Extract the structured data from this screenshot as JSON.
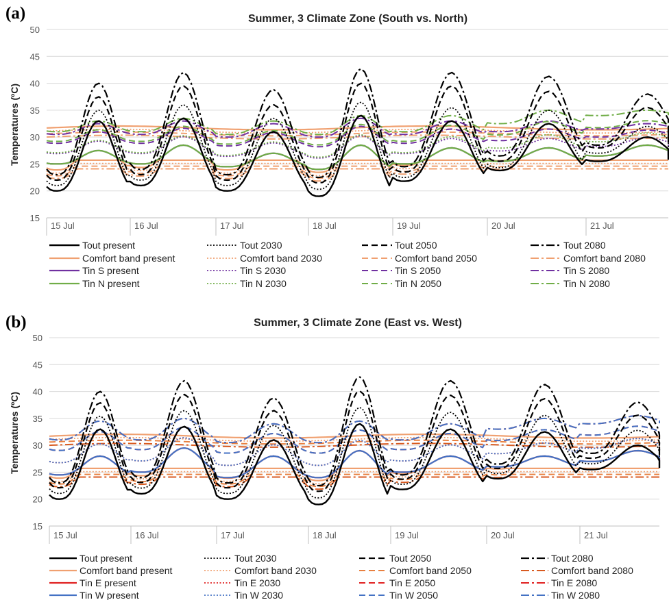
{
  "chart_data": [
    {
      "panel": "(a)",
      "type": "line",
      "title": "Summer, 3 Climate Zone (South vs. North)",
      "ylabel": "Temperatures (ºC)",
      "xlabel": "",
      "ylim": [
        15,
        50
      ],
      "yticks": [
        "15",
        "20",
        "25",
        "30",
        "35",
        "40",
        "45",
        "50"
      ],
      "days": [
        "15 Jul",
        "16 Jul",
        "17 Jul",
        "18 Jul",
        "19 Jul",
        "20 Jul",
        "21 Jul"
      ],
      "grid": "horizontal",
      "legend_position": "bottom",
      "series": [
        {
          "name": "Tout present",
          "color": "#000000",
          "dash": "solid",
          "width": 2.4
        },
        {
          "name": "Tout 2030",
          "color": "#000000",
          "dash": "dot",
          "width": 1.8
        },
        {
          "name": "Tout 2050",
          "color": "#000000",
          "dash": "dash",
          "width": 2.2
        },
        {
          "name": "Tout 2080",
          "color": "#000000",
          "dash": "dashdot",
          "width": 2.2
        },
        {
          "name": "Comfort band present",
          "color": "#F0A070",
          "dash": "solid",
          "width": 2.2
        },
        {
          "name": "Comfort band 2030",
          "color": "#F0A070",
          "dash": "dot",
          "width": 1.8
        },
        {
          "name": "Comfort band 2050",
          "color": "#F0A070",
          "dash": "dash",
          "width": 2
        },
        {
          "name": "Comfort band 2080",
          "color": "#F0A070",
          "dash": "dashdot",
          "width": 2
        },
        {
          "name": "Tin S present",
          "color": "#7030A0",
          "dash": "solid",
          "width": 2.2
        },
        {
          "name": "Tin S 2030",
          "color": "#7030A0",
          "dash": "dot",
          "width": 1.8
        },
        {
          "name": "Tin S 2050",
          "color": "#7030A0",
          "dash": "dash",
          "width": 2
        },
        {
          "name": "Tin S 2080",
          "color": "#7030A0",
          "dash": "dashdot",
          "width": 2
        },
        {
          "name": "Tin N present",
          "color": "#70AD47",
          "dash": "solid",
          "width": 2.2
        },
        {
          "name": "Tin N 2030",
          "color": "#70AD47",
          "dash": "dot",
          "width": 1.8
        },
        {
          "name": "Tin N 2050",
          "color": "#70AD47",
          "dash": "dash",
          "width": 2
        },
        {
          "name": "Tin N 2080",
          "color": "#70AD47",
          "dash": "dashdot",
          "width": 2
        }
      ],
      "legend_labels": [
        "Tout present",
        "Tout 2030",
        "Tout 2050",
        "Tout 2080",
        "Comfort band present",
        "Comfort band 2030",
        "Comfort band 2050",
        "Comfort band 2080",
        "Tin S present",
        "Tin S 2030",
        "Tin S 2050",
        "Tin S 2080",
        "Tin N present",
        "Tin N 2030",
        "Tin N 2050",
        "Tin N 2080"
      ],
      "daily_values": {
        "Tout present": {
          "min": [
            20.0,
            21.0,
            20.0,
            19.0,
            21.8,
            23.8,
            25.5
          ],
          "max": [
            33.0,
            33.5,
            31.0,
            34.0,
            33.0,
            32.5,
            30.0
          ]
        },
        "Tout 2030": {
          "min": [
            21.0,
            22.0,
            21.0,
            20.3,
            22.5,
            24.3,
            27.0
          ],
          "max": [
            35.0,
            36.0,
            33.5,
            36.5,
            35.5,
            35.0,
            32.0
          ]
        },
        "Tout 2050": {
          "min": [
            22.0,
            23.0,
            22.0,
            21.5,
            23.5,
            25.5,
            28.0
          ],
          "max": [
            37.5,
            39.5,
            36.0,
            40.0,
            39.5,
            38.5,
            35.5
          ]
        },
        "Tout 2080": {
          "min": [
            23.0,
            24.0,
            23.0,
            22.5,
            24.5,
            26.5,
            28.5
          ],
          "max": [
            40.0,
            42.0,
            38.8,
            42.7,
            42.0,
            41.3,
            38.0
          ]
        },
        "Comfort band present (upper / lower)": [
          31.7,
          25.7
        ],
        "Tin S present": {
          "min": [
            25.0,
            25.0,
            24.5,
            24.0,
            25.0,
            25.5,
            26.5
          ],
          "max": [
            27.5,
            28.5,
            27.0,
            28.5,
            28.0,
            28.0,
            28.5
          ]
        },
        "Tin S 2080": {
          "min": [
            30.5,
            30.5,
            30.0,
            30.0,
            30.5,
            31.0,
            31.5
          ],
          "max": [
            32.5,
            33.0,
            32.5,
            33.5,
            33.0,
            33.0,
            32.5
          ]
        },
        "Tin N 2080": {
          "min": [
            31.0,
            31.0,
            30.5,
            30.5,
            31.0,
            32.5,
            34.0
          ],
          "max": [
            33.0,
            33.5,
            33.0,
            34.0,
            34.0,
            35.0,
            35.0
          ]
        }
      }
    },
    {
      "panel": "(b)",
      "type": "line",
      "title": "Summer, 3 Climate Zone (East vs. West)",
      "ylabel": "Temperatures (ºC)",
      "xlabel": "",
      "ylim": [
        15,
        50
      ],
      "yticks": [
        "15",
        "20",
        "25",
        "30",
        "35",
        "40",
        "45",
        "50"
      ],
      "days": [
        "15 Jul",
        "16 Jul",
        "17 Jul",
        "18 Jul",
        "19 Jul",
        "20 Jul",
        "21 Jul"
      ],
      "grid": "horizontal",
      "legend_position": "bottom",
      "series": [
        {
          "name": "Tout present",
          "color": "#000000",
          "dash": "solid",
          "width": 2.4
        },
        {
          "name": "Tout 2030",
          "color": "#000000",
          "dash": "dot",
          "width": 1.8
        },
        {
          "name": "Tout 2050",
          "color": "#000000",
          "dash": "dash",
          "width": 2.2
        },
        {
          "name": "Tout 2080",
          "color": "#000000",
          "dash": "dashdot",
          "width": 2.2
        },
        {
          "name": "Comfort band present",
          "color": "#F0A070",
          "dash": "solid",
          "width": 2.2
        },
        {
          "name": "Comfort band 2030",
          "color": "#F0A070",
          "dash": "dot",
          "width": 1.8
        },
        {
          "name": "Comfort band 2050",
          "color": "#E88040",
          "dash": "dash",
          "width": 2
        },
        {
          "name": "Comfort band 2080",
          "color": "#D85A20",
          "dash": "dashdot",
          "width": 2
        },
        {
          "name": "Tin E present",
          "color": "#E02020",
          "dash": "solid",
          "width": 2.2
        },
        {
          "name": "Tin E 2030",
          "color": "#E02020",
          "dash": "dot",
          "width": 1.8
        },
        {
          "name": "Tin E 2050",
          "color": "#E02020",
          "dash": "dash",
          "width": 2
        },
        {
          "name": "Tin E 2080",
          "color": "#E02020",
          "dash": "dashdot",
          "width": 2
        },
        {
          "name": "Tin W present",
          "color": "#4472C4",
          "dash": "solid",
          "width": 2.2
        },
        {
          "name": "Tin W 2030",
          "color": "#4472C4",
          "dash": "dot",
          "width": 1.8
        },
        {
          "name": "Tin W 2050",
          "color": "#4472C4",
          "dash": "dash",
          "width": 2
        },
        {
          "name": "Tin W 2080",
          "color": "#4472C4",
          "dash": "dashdot",
          "width": 2
        }
      ],
      "legend_labels": [
        "Tout present",
        "Tout 2030",
        "Tout 2050",
        "Tout 2080",
        "Comfort band present",
        "Comfort band 2030",
        "Comfort band 2050",
        "Comfort band 2080",
        "Tin E present",
        "Tin E  2030",
        "Tin E  2050",
        "Tin E  2080",
        "Tin W present",
        "Tin W 2030",
        "Tin W 2050",
        "Tin W 2080"
      ],
      "daily_values": {
        "Tout present": {
          "min": [
            20.0,
            21.0,
            20.0,
            19.0,
            21.8,
            23.8,
            25.5
          ],
          "max": [
            33.0,
            33.5,
            31.0,
            34.0,
            33.0,
            32.5,
            30.0
          ]
        },
        "Tout 2080": {
          "min": [
            23.0,
            24.0,
            23.0,
            22.5,
            24.5,
            26.5,
            28.5
          ],
          "max": [
            40.0,
            42.0,
            38.8,
            42.7,
            42.0,
            41.3,
            38.0
          ]
        },
        "Comfort band present (upper / lower)": [
          31.7,
          25.7
        ],
        "Tin E present": {
          "min": [
            24.5,
            25.0,
            24.0,
            24.0,
            25.0,
            26.0,
            27.0
          ],
          "max": [
            28.0,
            29.5,
            28.0,
            29.0,
            28.0,
            28.0,
            29.0
          ]
        },
        "Tin W 2080": {
          "min": [
            31.0,
            31.0,
            30.5,
            30.5,
            31.0,
            33.0,
            34.0
          ],
          "max": [
            34.5,
            35.0,
            34.0,
            34.5,
            34.0,
            35.0,
            35.5
          ]
        }
      }
    }
  ]
}
